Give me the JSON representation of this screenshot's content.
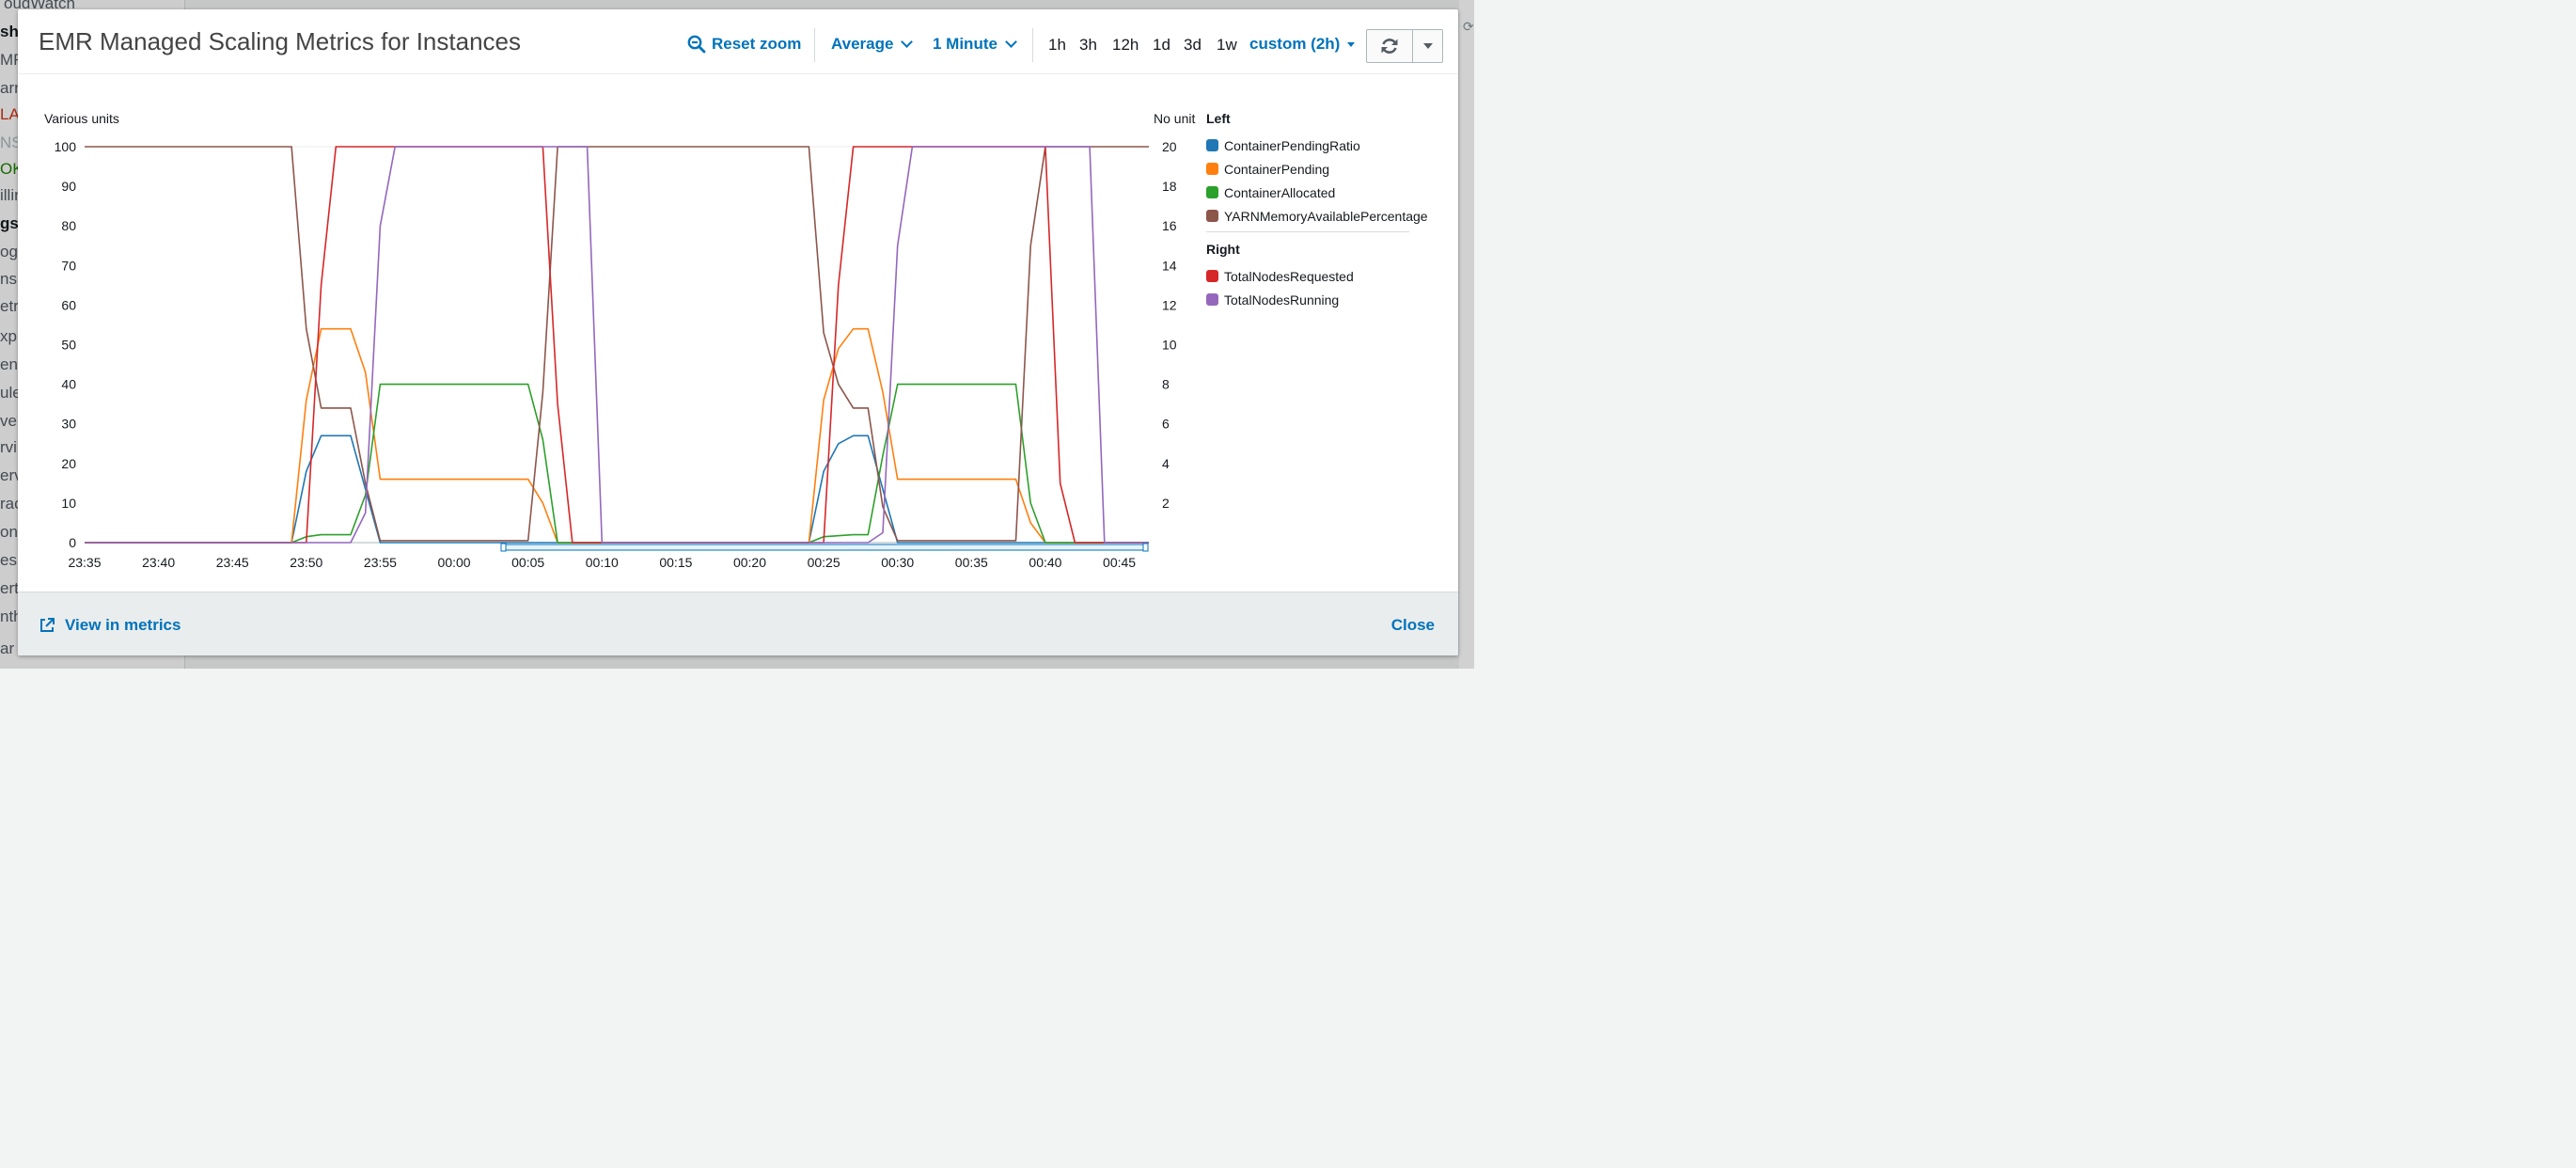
{
  "background": {
    "nav_items": [
      {
        "text": "oudWatch",
        "style": ""
      },
      {
        "text": "sh",
        "style": "c-bold"
      },
      {
        "text": "MF",
        "style": ""
      },
      {
        "text": "arn",
        "style": ""
      },
      {
        "text": "LA",
        "style": "c-red"
      },
      {
        "text": "NS",
        "style": "c-grey"
      },
      {
        "text": "OK",
        "style": "c-green"
      },
      {
        "text": "illin",
        "style": ""
      },
      {
        "text": "gs",
        "style": "c-bold"
      },
      {
        "text": "og",
        "style": ""
      },
      {
        "text": "nsig",
        "style": ""
      },
      {
        "text": "etr",
        "style": ""
      },
      {
        "text": "xp",
        "style": ""
      },
      {
        "text": "en",
        "style": ""
      },
      {
        "text": "ule",
        "style": ""
      },
      {
        "text": "ve",
        "style": ""
      },
      {
        "text": "rvi",
        "style": ""
      },
      {
        "text": "erv",
        "style": ""
      },
      {
        "text": "rac",
        "style": ""
      },
      {
        "text": "ont",
        "style": ""
      },
      {
        "text": "es",
        "style": ""
      },
      {
        "text": "ert",
        "style": ""
      },
      {
        "text": "nth",
        "style": ""
      },
      {
        "text": "ar",
        "style": ""
      }
    ]
  },
  "modal": {
    "title": "EMR Managed Scaling Metrics for Instances",
    "reset_zoom": "Reset zoom",
    "statistic": "Average",
    "period": "1 Minute",
    "ranges": [
      "1h",
      "3h",
      "12h",
      "1d",
      "3d",
      "1w"
    ],
    "custom_range": "custom (2h)",
    "footer_link": "View in metrics",
    "close": "Close"
  },
  "colors": {
    "accent": "#0073bb",
    "ContainerPendingRatio": "#1f77b4",
    "ContainerPending": "#ff7f0e",
    "ContainerAllocated": "#2ca02c",
    "YARNMemoryAvailablePercentage": "#8c564b",
    "TotalNodesRequested": "#d62728",
    "TotalNodesRunning": "#9467bd"
  },
  "chart_data": {
    "type": "line",
    "xlabels": [
      "23:35",
      "23:40",
      "23:45",
      "23:50",
      "23:55",
      "00:00",
      "00:05",
      "00:10",
      "00:15",
      "00:20",
      "00:25",
      "00:30",
      "00:35",
      "00:40",
      "00:45"
    ],
    "xrange": [
      "23:35",
      "00:47"
    ],
    "left_axis": {
      "label": "Various units",
      "range": [
        0,
        100
      ],
      "ticks": [
        0,
        10,
        20,
        30,
        40,
        50,
        60,
        70,
        80,
        90,
        100
      ]
    },
    "right_axis": {
      "label": "No unit",
      "range": [
        0,
        20
      ],
      "ticks": [
        2,
        4,
        6,
        8,
        10,
        12,
        14,
        16,
        18,
        20
      ]
    },
    "legend": {
      "left_title": "Left",
      "right_title": "Right"
    },
    "series": [
      {
        "name": "ContainerPendingRatio",
        "axis": "left",
        "color": "#1f77b4",
        "points": [
          [
            "23:35",
            0
          ],
          [
            "23:49",
            0
          ],
          [
            "23:50",
            18
          ],
          [
            "23:51",
            27
          ],
          [
            "23:53",
            27
          ],
          [
            "23:55",
            0
          ],
          [
            "00:05",
            0
          ],
          [
            "00:07",
            0
          ],
          [
            "00:24",
            0
          ],
          [
            "00:25",
            18
          ],
          [
            "00:26",
            25
          ],
          [
            "00:27",
            27
          ],
          [
            "00:28",
            27
          ],
          [
            "00:30",
            0
          ],
          [
            "00:47",
            0
          ]
        ]
      },
      {
        "name": "ContainerPending",
        "axis": "left",
        "color": "#ff7f0e",
        "points": [
          [
            "23:35",
            0
          ],
          [
            "23:49",
            0
          ],
          [
            "23:50",
            36
          ],
          [
            "23:51",
            54
          ],
          [
            "23:53",
            54
          ],
          [
            "23:54",
            43
          ],
          [
            "23:55",
            16
          ],
          [
            "00:05",
            16
          ],
          [
            "00:06",
            10
          ],
          [
            "00:07",
            0
          ],
          [
            "00:24",
            0
          ],
          [
            "00:25",
            36
          ],
          [
            "00:26",
            49
          ],
          [
            "00:27",
            54
          ],
          [
            "00:28",
            54
          ],
          [
            "00:29",
            38
          ],
          [
            "00:30",
            16
          ],
          [
            "00:38",
            16
          ],
          [
            "00:39",
            5
          ],
          [
            "00:40",
            0
          ],
          [
            "00:47",
            0
          ]
        ]
      },
      {
        "name": "ContainerAllocated",
        "axis": "left",
        "color": "#2ca02c",
        "points": [
          [
            "23:35",
            0
          ],
          [
            "23:49",
            0
          ],
          [
            "23:50",
            1.5
          ],
          [
            "23:51",
            2
          ],
          [
            "23:53",
            2
          ],
          [
            "23:54",
            12
          ],
          [
            "23:55",
            40
          ],
          [
            "00:05",
            40
          ],
          [
            "00:06",
            26
          ],
          [
            "00:07",
            0
          ],
          [
            "00:24",
            0
          ],
          [
            "00:25",
            1.5
          ],
          [
            "00:27",
            2
          ],
          [
            "00:28",
            2
          ],
          [
            "00:29",
            22
          ],
          [
            "00:30",
            40
          ],
          [
            "00:38",
            40
          ],
          [
            "00:39",
            10
          ],
          [
            "00:40",
            0
          ],
          [
            "00:47",
            0
          ]
        ]
      },
      {
        "name": "YARNMemoryAvailablePercentage",
        "axis": "left",
        "color": "#8c564b",
        "points": [
          [
            "23:35",
            100
          ],
          [
            "23:49",
            100
          ],
          [
            "23:50",
            54
          ],
          [
            "23:51",
            34
          ],
          [
            "23:53",
            34
          ],
          [
            "23:54",
            15
          ],
          [
            "23:55",
            0.5
          ],
          [
            "00:05",
            0.5
          ],
          [
            "00:06",
            38
          ],
          [
            "00:07",
            100
          ],
          [
            "00:24",
            100
          ],
          [
            "00:25",
            53
          ],
          [
            "00:26",
            40
          ],
          [
            "00:27",
            34
          ],
          [
            "00:28",
            34
          ],
          [
            "00:29",
            9
          ],
          [
            "00:30",
            0.5
          ],
          [
            "00:38",
            0.5
          ],
          [
            "00:39",
            75
          ],
          [
            "00:40",
            100
          ],
          [
            "00:47",
            100
          ]
        ]
      },
      {
        "name": "TotalNodesRequested",
        "axis": "right",
        "color": "#d62728",
        "points": [
          [
            "23:35",
            0
          ],
          [
            "23:50",
            0
          ],
          [
            "23:51",
            13
          ],
          [
            "23:52",
            20
          ],
          [
            "00:06",
            20
          ],
          [
            "00:07",
            7
          ],
          [
            "00:08",
            0
          ],
          [
            "00:25",
            0
          ],
          [
            "00:26",
            13
          ],
          [
            "00:27",
            20
          ],
          [
            "00:40",
            20
          ],
          [
            "00:41",
            3
          ],
          [
            "00:42",
            0
          ],
          [
            "00:47",
            0
          ]
        ]
      },
      {
        "name": "TotalNodesRunning",
        "axis": "right",
        "color": "#9467bd",
        "points": [
          [
            "23:35",
            0
          ],
          [
            "23:53",
            0
          ],
          [
            "23:54",
            1.5
          ],
          [
            "23:55",
            16
          ],
          [
            "23:56",
            20
          ],
          [
            "00:09",
            20
          ],
          [
            "00:10",
            0
          ],
          [
            "00:28",
            0
          ],
          [
            "00:29",
            0.5
          ],
          [
            "00:30",
            15
          ],
          [
            "00:31",
            20
          ],
          [
            "00:43",
            20
          ],
          [
            "00:44",
            0
          ],
          [
            "00:47",
            0
          ]
        ]
      }
    ]
  }
}
